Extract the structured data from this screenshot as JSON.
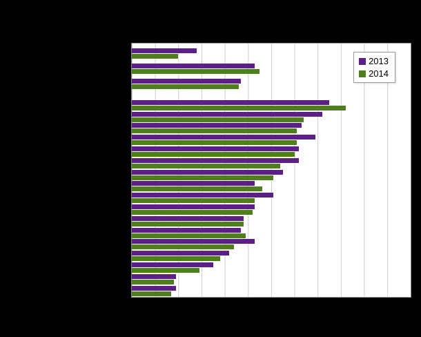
{
  "chart_data": {
    "type": "bar",
    "orientation": "horizontal",
    "title": "",
    "series": [
      "2013",
      "2014"
    ],
    "series_colors": [
      "#5c1f87",
      "#4f7f1c"
    ],
    "axis": {
      "xmin": 0,
      "xmax": 12,
      "gridline_interval": 1,
      "grid": true,
      "tick_labels_visible": false,
      "category_labels_visible": false
    },
    "note": "Axis tick labels, category labels and title are not legible in the screenshot (rendered black on black); bar values are estimated in gridline units (one vertical gridline spacing = 1).",
    "groups": [
      {
        "rows": [
          {
            "values": [
              2.8,
              2.0
            ]
          },
          {
            "values": [
              5.3,
              5.5
            ]
          },
          {
            "values": [
              4.7,
              4.6
            ]
          }
        ]
      },
      {
        "rows": [
          {
            "values": [
              8.5,
              9.2
            ]
          },
          {
            "values": [
              8.2,
              7.4
            ]
          },
          {
            "values": [
              7.3,
              7.1
            ]
          },
          {
            "values": [
              7.9,
              7.1
            ]
          },
          {
            "values": [
              7.2,
              7.0
            ]
          },
          {
            "values": [
              7.2,
              6.4
            ]
          },
          {
            "values": [
              6.5,
              6.1
            ]
          },
          {
            "values": [
              5.3,
              5.6
            ]
          },
          {
            "values": [
              6.1,
              5.3
            ]
          },
          {
            "values": [
              5.3,
              5.2
            ]
          },
          {
            "values": [
              4.8,
              4.8
            ]
          },
          {
            "values": [
              4.7,
              4.9
            ]
          },
          {
            "values": [
              5.3,
              4.4
            ]
          },
          {
            "values": [
              4.2,
              3.8
            ]
          },
          {
            "values": [
              3.5,
              2.9
            ]
          },
          {
            "values": [
              1.9,
              1.8
            ]
          },
          {
            "values": [
              1.9,
              1.7
            ]
          }
        ]
      }
    ]
  },
  "legend": {
    "items": [
      {
        "label": "2013",
        "color": "#5c1f87"
      },
      {
        "label": "2014",
        "color": "#4f7f1c"
      }
    ]
  }
}
